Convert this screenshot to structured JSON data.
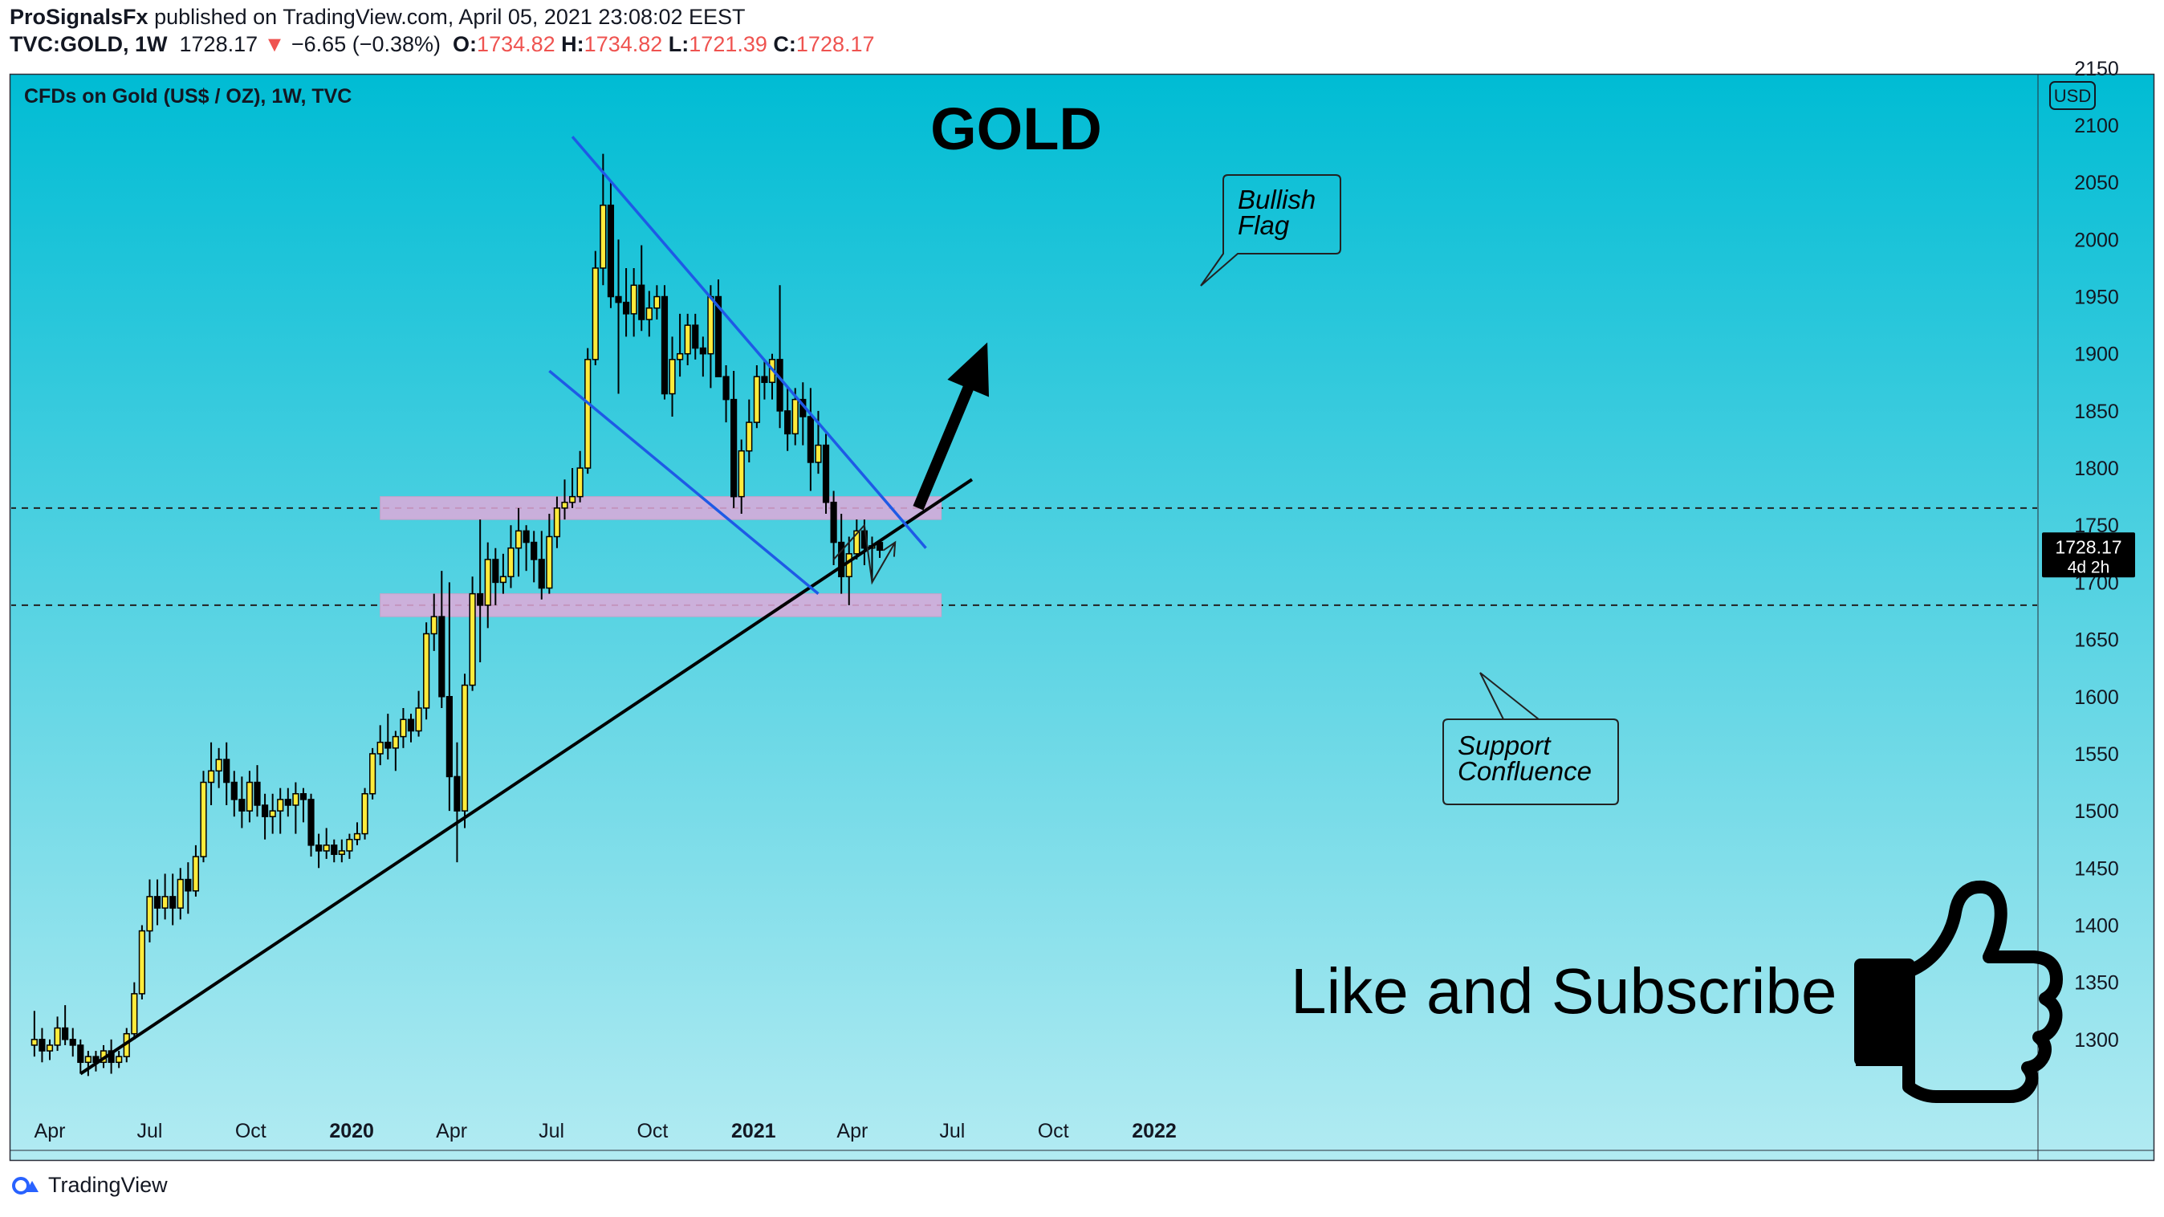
{
  "header": {
    "author": "ProSignalsFx",
    "published_text": "published on TradingView.com, April 05, 2021 23:08:02 EEST",
    "symbol": "TVC:GOLD, 1W",
    "last": "1728.17",
    "change_arrow": "▼",
    "change": "−6.65 (−0.38%)",
    "o_label": "O:",
    "o_value": "1734.82",
    "h_label": "H:",
    "h_value": "1734.82",
    "l_label": "L:",
    "l_value": "1721.39",
    "c_label": "C:",
    "c_value": "1728.17"
  },
  "colors": {
    "bg_top": "#00bcd4",
    "bg_bottom": "#b2ebf2",
    "bull_candle": "#ffeb3b",
    "bear_candle": "#000000",
    "channel": "#1e5ae6",
    "zone": "#e1a9d9",
    "price_tag": "#000000",
    "change_down": "#ef5350"
  },
  "footer": {
    "logo_icon": "tradingview-logo-icon",
    "brand": "TradingView"
  },
  "thumbs_icon": "thumbs-up-icon",
  "chart_data": {
    "type": "candlestick",
    "title": "CFDs on Gold (US$ / OZ), 1W, TVC",
    "currency": "USD",
    "headline": "GOLD",
    "xlabel": "",
    "ylabel": "",
    "x_start": "2019-03-18",
    "x_range": [
      "2019-03-11",
      "2022-02-21"
    ],
    "ylim": [
      1245,
      2150
    ],
    "yticks": [
      2150,
      2100,
      2050,
      2000,
      1950,
      1900,
      1850,
      1800,
      1750,
      1700,
      1650,
      1600,
      1550,
      1500,
      1450,
      1400,
      1350,
      1300
    ],
    "ytick_labels": [
      "2150",
      "2100",
      "2050",
      "2000",
      "1950",
      "1900",
      "1850",
      "1800",
      "1750",
      "1700",
      "1650",
      "1600",
      "1550",
      "1500",
      "1450",
      "1400",
      "1350",
      "1300"
    ],
    "xticks": [
      {
        "label": "Apr",
        "date": "2019-04-01"
      },
      {
        "label": "Jul",
        "date": "2019-07-01"
      },
      {
        "label": "Oct",
        "date": "2019-10-01"
      },
      {
        "label": "2020",
        "date": "2020-01-01",
        "bold": true
      },
      {
        "label": "Apr",
        "date": "2020-04-01"
      },
      {
        "label": "Jul",
        "date": "2020-07-01"
      },
      {
        "label": "Oct",
        "date": "2020-10-01"
      },
      {
        "label": "2021",
        "date": "2021-01-01",
        "bold": true
      },
      {
        "label": "Apr",
        "date": "2021-04-01"
      },
      {
        "label": "Jul",
        "date": "2021-07-01"
      },
      {
        "label": "Oct",
        "date": "2021-10-01"
      },
      {
        "label": "2022",
        "date": "2022-01-01",
        "bold": true
      }
    ],
    "last_price_label": {
      "value": 1728.17,
      "text": "1728.17",
      "countdown": "4d 2h"
    },
    "candles": [
      [
        1295,
        1325,
        1285,
        1300
      ],
      [
        1300,
        1310,
        1280,
        1290
      ],
      [
        1290,
        1300,
        1282,
        1295
      ],
      [
        1295,
        1320,
        1290,
        1310
      ],
      [
        1310,
        1330,
        1295,
        1300
      ],
      [
        1300,
        1310,
        1285,
        1295
      ],
      [
        1295,
        1300,
        1270,
        1280
      ],
      [
        1280,
        1290,
        1268,
        1285
      ],
      [
        1285,
        1290,
        1272,
        1280
      ],
      [
        1280,
        1295,
        1275,
        1290
      ],
      [
        1290,
        1300,
        1270,
        1280
      ],
      [
        1280,
        1290,
        1275,
        1285
      ],
      [
        1285,
        1310,
        1280,
        1305
      ],
      [
        1305,
        1350,
        1300,
        1340
      ],
      [
        1340,
        1400,
        1335,
        1395
      ],
      [
        1395,
        1440,
        1385,
        1425
      ],
      [
        1425,
        1440,
        1400,
        1415
      ],
      [
        1415,
        1445,
        1405,
        1425
      ],
      [
        1425,
        1445,
        1400,
        1415
      ],
      [
        1415,
        1450,
        1405,
        1440
      ],
      [
        1440,
        1455,
        1410,
        1430
      ],
      [
        1430,
        1470,
        1425,
        1460
      ],
      [
        1460,
        1535,
        1455,
        1525
      ],
      [
        1525,
        1560,
        1505,
        1535
      ],
      [
        1535,
        1555,
        1520,
        1545
      ],
      [
        1545,
        1560,
        1505,
        1525
      ],
      [
        1525,
        1535,
        1495,
        1510
      ],
      [
        1510,
        1530,
        1485,
        1500
      ],
      [
        1500,
        1535,
        1490,
        1525
      ],
      [
        1525,
        1540,
        1495,
        1505
      ],
      [
        1505,
        1515,
        1475,
        1495
      ],
      [
        1495,
        1515,
        1480,
        1500
      ],
      [
        1500,
        1520,
        1480,
        1510
      ],
      [
        1510,
        1520,
        1495,
        1505
      ],
      [
        1505,
        1525,
        1480,
        1515
      ],
      [
        1515,
        1520,
        1490,
        1510
      ],
      [
        1510,
        1515,
        1460,
        1470
      ],
      [
        1470,
        1480,
        1450,
        1465
      ],
      [
        1465,
        1485,
        1458,
        1470
      ],
      [
        1470,
        1475,
        1455,
        1462
      ],
      [
        1462,
        1475,
        1455,
        1465
      ],
      [
        1465,
        1480,
        1458,
        1475
      ],
      [
        1475,
        1490,
        1470,
        1480
      ],
      [
        1480,
        1520,
        1475,
        1515
      ],
      [
        1515,
        1555,
        1510,
        1550
      ],
      [
        1550,
        1575,
        1540,
        1560
      ],
      [
        1560,
        1585,
        1545,
        1555
      ],
      [
        1555,
        1570,
        1535,
        1565
      ],
      [
        1565,
        1590,
        1555,
        1580
      ],
      [
        1580,
        1585,
        1560,
        1570
      ],
      [
        1570,
        1605,
        1565,
        1590
      ],
      [
        1590,
        1665,
        1580,
        1655
      ],
      [
        1655,
        1690,
        1640,
        1670
      ],
      [
        1670,
        1710,
        1590,
        1600
      ],
      [
        1600,
        1700,
        1500,
        1530
      ],
      [
        1530,
        1560,
        1455,
        1500
      ],
      [
        1500,
        1620,
        1485,
        1610
      ],
      [
        1610,
        1705,
        1605,
        1690
      ],
      [
        1690,
        1755,
        1630,
        1680
      ],
      [
        1680,
        1735,
        1660,
        1720
      ],
      [
        1720,
        1730,
        1680,
        1700
      ],
      [
        1700,
        1725,
        1690,
        1705
      ],
      [
        1705,
        1750,
        1695,
        1730
      ],
      [
        1730,
        1765,
        1705,
        1745
      ],
      [
        1745,
        1750,
        1710,
        1735
      ],
      [
        1735,
        1745,
        1700,
        1720
      ],
      [
        1720,
        1745,
        1685,
        1695
      ],
      [
        1695,
        1760,
        1690,
        1740
      ],
      [
        1740,
        1775,
        1730,
        1765
      ],
      [
        1765,
        1790,
        1755,
        1770
      ],
      [
        1770,
        1800,
        1765,
        1775
      ],
      [
        1775,
        1815,
        1770,
        1800
      ],
      [
        1800,
        1905,
        1795,
        1895
      ],
      [
        1895,
        1990,
        1890,
        1975
      ],
      [
        1975,
        2075,
        1960,
        2030
      ],
      [
        2030,
        2050,
        1940,
        1950
      ],
      [
        1950,
        2000,
        1865,
        1945
      ],
      [
        1945,
        1975,
        1915,
        1935
      ],
      [
        1935,
        1975,
        1915,
        1960
      ],
      [
        1960,
        1995,
        1920,
        1930
      ],
      [
        1930,
        1955,
        1915,
        1940
      ],
      [
        1940,
        1960,
        1930,
        1950
      ],
      [
        1950,
        1960,
        1860,
        1865
      ],
      [
        1865,
        1915,
        1845,
        1895
      ],
      [
        1895,
        1935,
        1880,
        1900
      ],
      [
        1900,
        1935,
        1890,
        1925
      ],
      [
        1925,
        1935,
        1895,
        1905
      ],
      [
        1905,
        1915,
        1880,
        1900
      ],
      [
        1900,
        1960,
        1870,
        1950
      ],
      [
        1950,
        1965,
        1880,
        1880
      ],
      [
        1880,
        1890,
        1840,
        1860
      ],
      [
        1860,
        1885,
        1765,
        1775
      ],
      [
        1775,
        1825,
        1760,
        1815
      ],
      [
        1815,
        1860,
        1805,
        1840
      ],
      [
        1840,
        1890,
        1835,
        1880
      ],
      [
        1880,
        1895,
        1860,
        1875
      ],
      [
        1875,
        1900,
        1860,
        1895
      ],
      [
        1895,
        1960,
        1835,
        1850
      ],
      [
        1850,
        1870,
        1815,
        1830
      ],
      [
        1830,
        1870,
        1820,
        1860
      ],
      [
        1860,
        1875,
        1820,
        1845
      ],
      [
        1845,
        1870,
        1780,
        1805
      ],
      [
        1805,
        1850,
        1795,
        1820
      ],
      [
        1820,
        1830,
        1760,
        1770
      ],
      [
        1770,
        1780,
        1715,
        1735
      ],
      [
        1735,
        1760,
        1690,
        1705
      ],
      [
        1705,
        1740,
        1680,
        1725
      ],
      [
        1725,
        1755,
        1720,
        1745
      ],
      [
        1745,
        1755,
        1715,
        1730
      ],
      [
        1730,
        1740,
        1700,
        1732
      ],
      [
        1734.82,
        1734.82,
        1721.39,
        1728.17
      ]
    ],
    "trendline": [
      {
        "date": "2019-04-29",
        "price": 1270
      },
      {
        "date": "2021-07-19",
        "price": 1790
      }
    ],
    "channel_upper": [
      {
        "date": "2020-07-20",
        "price": 2090
      },
      {
        "date": "2021-06-07",
        "price": 1730
      }
    ],
    "channel_lower": [
      {
        "date": "2020-06-29",
        "price": 1885
      },
      {
        "date": "2021-03-01",
        "price": 1690
      }
    ],
    "zones": [
      {
        "from": "2020-01-27",
        "to": "2021-06-21",
        "low": 1755,
        "high": 1775
      },
      {
        "from": "2020-01-27",
        "to": "2021-06-21",
        "low": 1670,
        "high": 1690
      }
    ],
    "hlines": [
      1765,
      1680
    ],
    "path_arrow": [
      {
        "date": "2021-03-15",
        "price": 1720
      },
      {
        "date": "2021-04-12",
        "price": 1750
      },
      {
        "date": "2021-04-19",
        "price": 1700
      },
      {
        "date": "2021-05-10",
        "price": 1735
      }
    ],
    "breakout_arrow": [
      {
        "date": "2021-05-31",
        "price": 1765
      },
      {
        "date": "2021-08-02",
        "price": 1910
      }
    ],
    "callouts": [
      {
        "id": "bullish-flag",
        "lines": [
          "Bullish",
          "Flag"
        ]
      },
      {
        "id": "support-confluence",
        "lines": [
          "Support",
          "Confluence"
        ]
      }
    ],
    "cta": "Like and Subscribe"
  }
}
